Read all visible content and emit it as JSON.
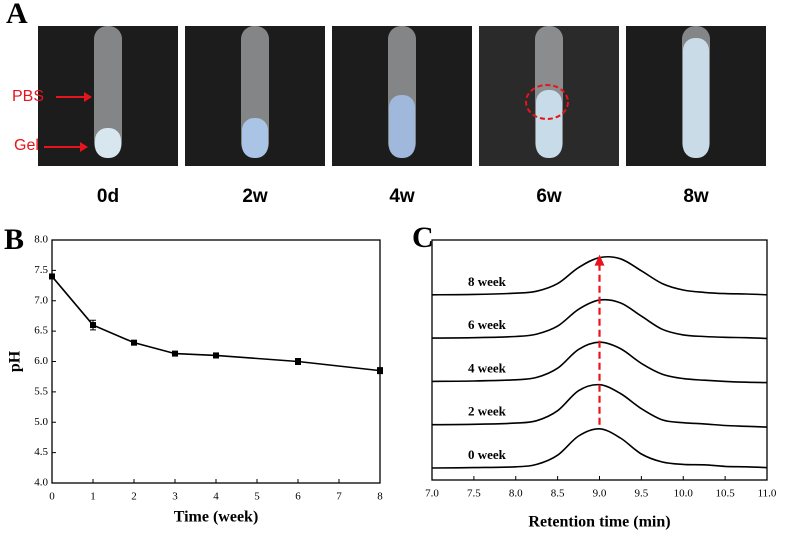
{
  "panel_a": {
    "label": "A",
    "images": [
      {
        "label": "0d"
      },
      {
        "label": "2w"
      },
      {
        "label": "4w"
      },
      {
        "label": "6w"
      },
      {
        "label": "8w"
      }
    ],
    "annotations": [
      "PBS",
      "Gel"
    ]
  },
  "chart_data": [
    {
      "type": "line",
      "panel_label": "B",
      "xlabel": "Time (week)",
      "ylabel": "pH",
      "x": [
        0,
        1,
        2,
        3,
        4,
        6,
        8
      ],
      "values": [
        7.4,
        6.6,
        6.31,
        6.13,
        6.1,
        6.0,
        5.85
      ],
      "errors": [
        0,
        0.08,
        0.03,
        0.03,
        0.04,
        0.05,
        0.05
      ],
      "color": "#000000",
      "xlim": [
        0,
        8
      ],
      "xticks": [
        0,
        1,
        2,
        3,
        4,
        5,
        6,
        7,
        8
      ],
      "ylim": [
        4,
        8
      ],
      "yticks": [
        {
          "value": 4,
          "label": "4.0"
        },
        {
          "value": 4.5,
          "label": "4.5"
        },
        {
          "value": 5,
          "label": "5.0"
        },
        {
          "value": 5.5,
          "label": "5.5"
        },
        {
          "value": 6,
          "label": "6.0"
        },
        {
          "value": 6.5,
          "label": "6.5"
        },
        {
          "value": 7,
          "label": "7.0"
        },
        {
          "value": 7.5,
          "label": "7.5"
        },
        {
          "value": 8,
          "label": "8.0"
        }
      ]
    },
    {
      "type": "trace",
      "panel_label": "C",
      "xlabel": "Retention time (min)",
      "x": [
        7.0,
        7.5,
        8.0,
        8.25,
        8.5,
        8.75,
        9.0,
        9.25,
        9.5,
        9.75,
        10.0,
        10.25,
        10.5,
        10.75,
        11.0
      ],
      "series": [
        {
          "name": "0 week",
          "color": "#000000",
          "values": [
            0,
            0.01,
            0.03,
            0.09,
            0.32,
            0.8,
            0.98,
            0.75,
            0.35,
            0.15,
            0.09,
            0.08,
            0.04,
            0.03,
            0.01
          ]
        },
        {
          "name": "2 week",
          "color": "#000000",
          "values": [
            0,
            0.01,
            0.04,
            0.1,
            0.35,
            0.85,
            1.0,
            0.78,
            0.4,
            0.12,
            0.05,
            0.02,
            -0.02,
            -0.04,
            -0.06
          ]
        },
        {
          "name": "4 week",
          "color": "#000000",
          "values": [
            0,
            0.01,
            0.04,
            0.1,
            0.33,
            0.8,
            0.98,
            0.82,
            0.45,
            0.18,
            0.07,
            0.03,
            0,
            -0.02,
            -0.03
          ]
        },
        {
          "name": "6 week",
          "color": "#000000",
          "values": [
            0,
            0.01,
            0.04,
            0.1,
            0.3,
            0.72,
            0.95,
            0.88,
            0.55,
            0.22,
            0.08,
            0.04,
            0.02,
            0.01,
            -0.01
          ]
        },
        {
          "name": "8 week",
          "color": "#000000",
          "values": [
            0,
            0.01,
            0.04,
            0.09,
            0.28,
            0.68,
            0.93,
            0.9,
            0.6,
            0.28,
            0.12,
            0.06,
            0.03,
            0.02,
            0.0
          ]
        }
      ],
      "arrow_color": "#e8141c",
      "xlim": [
        7,
        11
      ],
      "xticks": [
        {
          "value": 7,
          "label": "7.0"
        },
        {
          "value": 7.5,
          "label": "7.5"
        },
        {
          "value": 8,
          "label": "8.0"
        },
        {
          "value": 8.5,
          "label": "8.5"
        },
        {
          "value": 9,
          "label": "9.0"
        },
        {
          "value": 9.5,
          "label": "9.5"
        },
        {
          "value": 10,
          "label": "10.0"
        },
        {
          "value": 10.5,
          "label": "10.5"
        },
        {
          "value": 11,
          "label": "11.0"
        }
      ]
    }
  ]
}
